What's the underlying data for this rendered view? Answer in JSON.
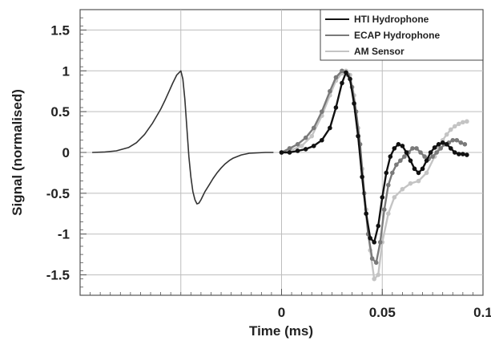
{
  "chart_data": {
    "type": "line",
    "xlabel": "Time (ms)",
    "ylabel": "Signal (normalised)",
    "xlim": [
      -0.1,
      0.1
    ],
    "ylim": [
      -1.75,
      1.75
    ],
    "x_ticks": [
      0,
      0.05,
      0.1
    ],
    "x_tick_labels": [
      "0",
      "0.05",
      "0.1"
    ],
    "y_ticks": [
      1.5,
      1,
      0.5,
      0,
      -0.5,
      -1,
      -1.5
    ],
    "y_tick_labels": [
      "1.5",
      "1",
      "0.5",
      "0",
      "-0.5",
      "-1",
      "-1.5"
    ],
    "grid": true,
    "legend_position": "top-right",
    "series": [
      {
        "name": "",
        "color": "#333333",
        "marker": "none",
        "x": [
          -0.094,
          -0.088,
          -0.082,
          -0.076,
          -0.072,
          -0.068,
          -0.064,
          -0.06,
          -0.058,
          -0.056,
          -0.054,
          -0.052,
          -0.05,
          -0.049,
          -0.048,
          -0.047,
          -0.046,
          -0.045,
          -0.044,
          -0.043,
          -0.042,
          -0.041,
          -0.04,
          -0.039,
          -0.038,
          -0.036,
          -0.034,
          -0.032,
          -0.03,
          -0.028,
          -0.026,
          -0.024,
          -0.02,
          -0.016,
          -0.012,
          -0.008,
          -0.004
        ],
        "y": [
          0.0,
          0.005,
          0.02,
          0.06,
          0.12,
          0.22,
          0.36,
          0.53,
          0.63,
          0.74,
          0.85,
          0.95,
          1.0,
          0.9,
          0.65,
          0.3,
          -0.05,
          -0.3,
          -0.48,
          -0.58,
          -0.63,
          -0.62,
          -0.58,
          -0.53,
          -0.48,
          -0.4,
          -0.32,
          -0.25,
          -0.19,
          -0.14,
          -0.1,
          -0.07,
          -0.03,
          -0.01,
          -0.005,
          0.0,
          0.0
        ]
      },
      {
        "name": "HTI Hydrophone",
        "color": "#111111",
        "marker": "circle",
        "x": [
          0.0,
          0.004,
          0.008,
          0.012,
          0.016,
          0.02,
          0.024,
          0.027,
          0.03,
          0.032,
          0.034,
          0.036,
          0.038,
          0.04,
          0.042,
          0.044,
          0.046,
          0.048,
          0.05,
          0.052,
          0.054,
          0.056,
          0.058,
          0.06,
          0.062,
          0.064,
          0.066,
          0.068,
          0.07,
          0.072,
          0.074,
          0.076,
          0.078,
          0.08,
          0.082,
          0.084,
          0.086,
          0.088,
          0.09,
          0.092
        ],
        "y": [
          0.0,
          0.0,
          0.02,
          0.04,
          0.08,
          0.15,
          0.3,
          0.55,
          0.85,
          0.98,
          0.9,
          0.6,
          0.2,
          -0.3,
          -0.75,
          -1.05,
          -1.1,
          -0.9,
          -0.55,
          -0.25,
          -0.05,
          0.05,
          0.1,
          0.08,
          0.0,
          -0.1,
          -0.2,
          -0.25,
          -0.2,
          -0.1,
          0.0,
          0.06,
          0.1,
          0.12,
          0.1,
          0.05,
          0.0,
          -0.02,
          -0.02,
          -0.03
        ]
      },
      {
        "name": "ECAP Hydrophone",
        "color": "#7a7a7a",
        "marker": "circle",
        "x": [
          0.0,
          0.004,
          0.008,
          0.012,
          0.016,
          0.02,
          0.024,
          0.027,
          0.03,
          0.033,
          0.035,
          0.037,
          0.039,
          0.041,
          0.043,
          0.045,
          0.047,
          0.049,
          0.051,
          0.053,
          0.055,
          0.057,
          0.059,
          0.061,
          0.063,
          0.065,
          0.067,
          0.069,
          0.071,
          0.073,
          0.075,
          0.077,
          0.079,
          0.081,
          0.083,
          0.085,
          0.087,
          0.089,
          0.091
        ],
        "y": [
          0.0,
          0.05,
          0.1,
          0.18,
          0.3,
          0.5,
          0.75,
          0.92,
          1.0,
          0.95,
          0.8,
          0.5,
          0.1,
          -0.5,
          -1.0,
          -1.3,
          -1.35,
          -1.1,
          -0.7,
          -0.4,
          -0.25,
          -0.15,
          -0.1,
          -0.05,
          0.0,
          0.05,
          0.05,
          0.0,
          -0.05,
          -0.08,
          -0.05,
          0.0,
          0.05,
          0.1,
          0.12,
          0.15,
          0.15,
          0.12,
          0.1
        ]
      },
      {
        "name": "AM Sensor",
        "color": "#c4c4c4",
        "marker": "circle",
        "x": [
          0.0,
          0.005,
          0.01,
          0.015,
          0.02,
          0.024,
          0.027,
          0.03,
          0.032,
          0.034,
          0.036,
          0.038,
          0.04,
          0.042,
          0.044,
          0.046,
          0.048,
          0.05,
          0.053,
          0.056,
          0.06,
          0.064,
          0.068,
          0.072,
          0.076,
          0.078,
          0.08,
          0.082,
          0.084,
          0.086,
          0.088,
          0.09,
          0.092
        ],
        "y": [
          0.0,
          0.03,
          0.08,
          0.2,
          0.45,
          0.7,
          0.88,
          0.97,
          1.0,
          0.95,
          0.7,
          0.3,
          -0.2,
          -0.7,
          -1.2,
          -1.55,
          -1.5,
          -1.1,
          -0.75,
          -0.55,
          -0.45,
          -0.38,
          -0.35,
          -0.25,
          -0.05,
          0.05,
          0.15,
          0.22,
          0.28,
          0.32,
          0.35,
          0.37,
          0.38
        ]
      }
    ]
  }
}
